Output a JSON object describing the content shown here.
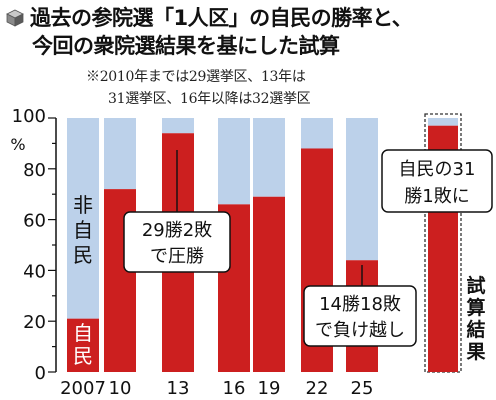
{
  "title": {
    "line1": "過去の参院選「1人区」の自民の勝率と、",
    "line2": "今回の衆院選結果を基にした試算",
    "icon": "cube-icon"
  },
  "note": {
    "line1": "※2010年までは29選挙区、13年は",
    "line2": "31選挙区、16年以降は32選挙区"
  },
  "colors": {
    "ldp": "#cc1f1f",
    "non_ldp": "#bcd1ea",
    "text": "#111111"
  },
  "chart_data": {
    "type": "bar",
    "stacked": true,
    "categories": [
      "2007",
      "10",
      "13",
      "16",
      "19",
      "22",
      "25"
    ],
    "series": [
      {
        "name": "自民",
        "values": [
          21,
          72,
          94,
          66,
          69,
          88,
          44
        ]
      },
      {
        "name": "非自民",
        "values": [
          79,
          28,
          6,
          34,
          31,
          12,
          56
        ]
      }
    ],
    "ylim": [
      0,
      100
    ],
    "yticks": [
      "0",
      "20",
      "40",
      "60",
      "80",
      "100"
    ],
    "yunit": "%",
    "series_labels": {
      "ldp": "自民",
      "non_ldp": "非自民"
    },
    "annotations": [
      {
        "category": "13",
        "text_lines": [
          "29勝2敗",
          "で圧勝"
        ]
      },
      {
        "category": "25",
        "text_lines": [
          "14勝18敗",
          "で負け越し"
        ]
      }
    ],
    "estimate": {
      "label": "試算結果",
      "value": 97,
      "callout_lines": [
        "自民の31",
        "勝1敗に"
      ]
    }
  }
}
